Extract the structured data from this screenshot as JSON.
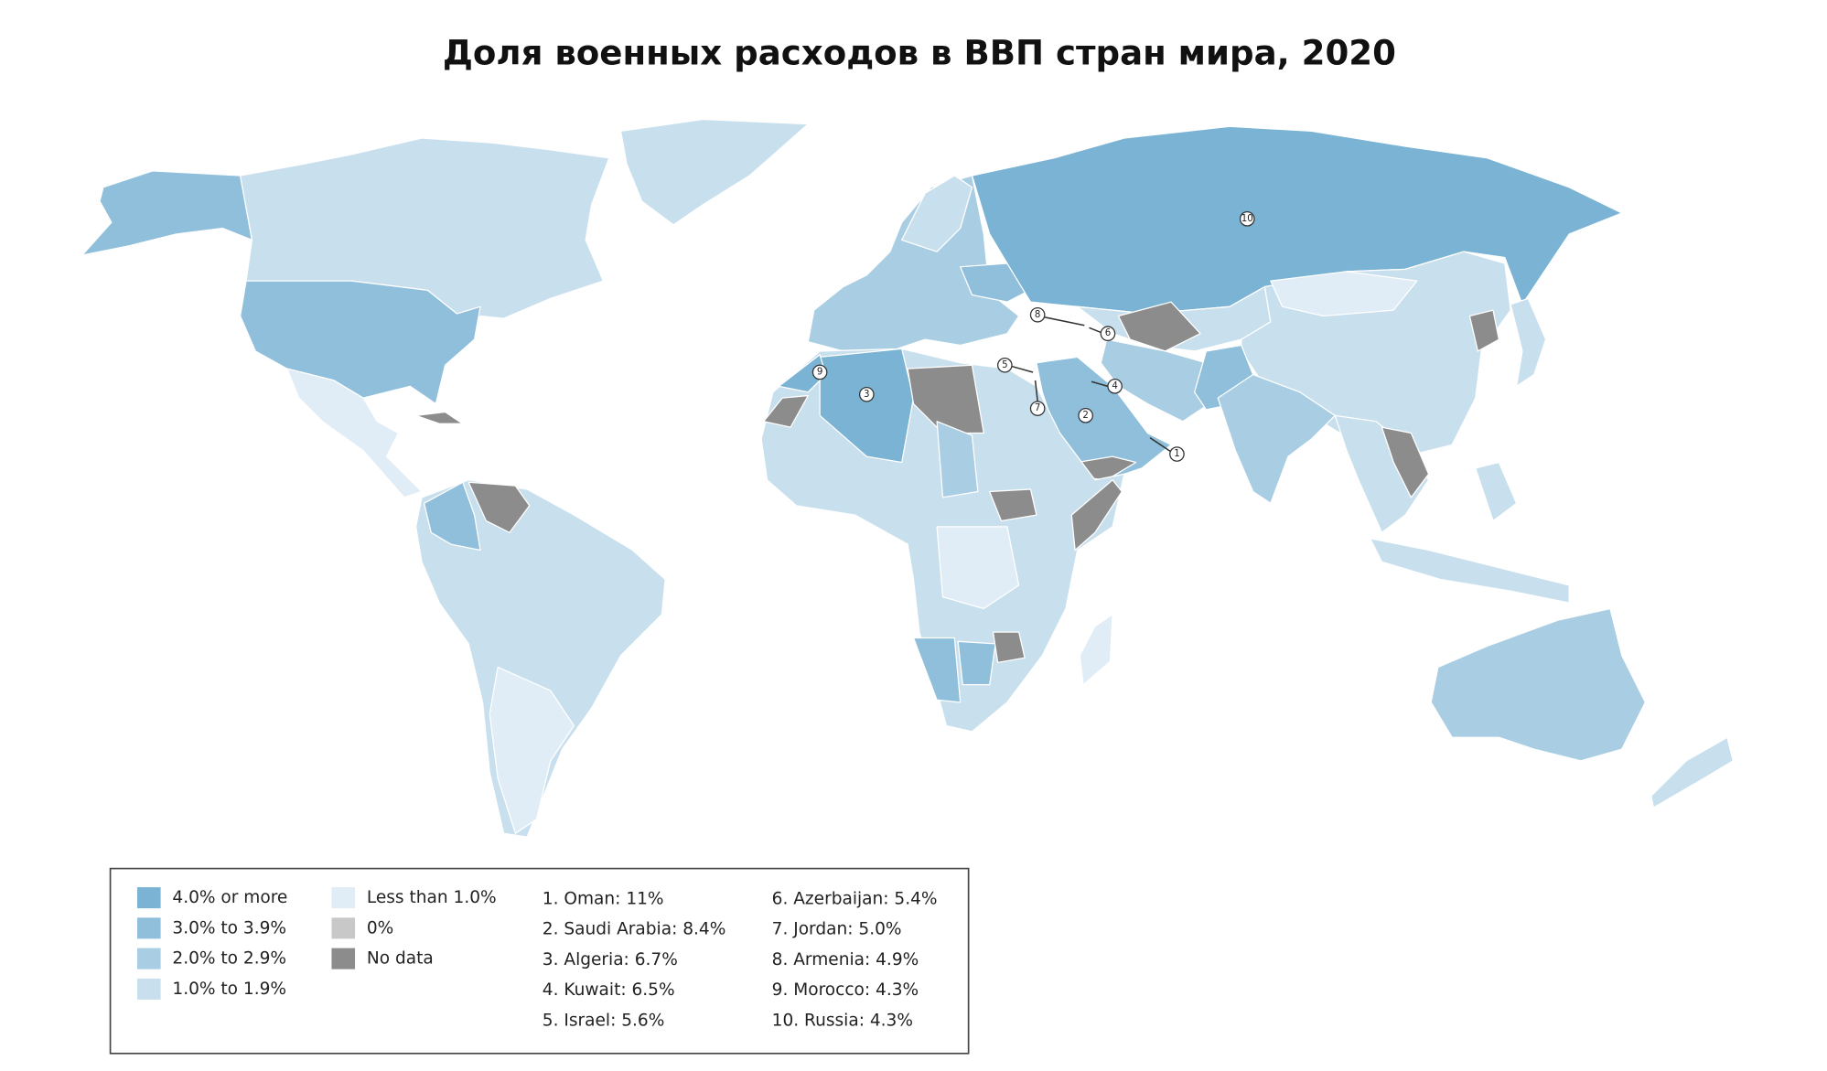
{
  "title": "Доля военных расходов в ВВП стран мира, 2020",
  "legend": {
    "categories": [
      {
        "label": "4.0% or more",
        "color": "#7ab3d3"
      },
      {
        "label": "3.0% to 3.9%",
        "color": "#8fbfdb"
      },
      {
        "label": "2.0% to 2.9%",
        "color": "#a9cde3"
      },
      {
        "label": "1.0% to 1.9%",
        "color": "#c8dfed"
      },
      {
        "label": "Less than 1.0%",
        "color": "#e1edf6"
      },
      {
        "label": "0%",
        "color": "#c8c8c8"
      },
      {
        "label": "No data",
        "color": "#8c8c8c"
      }
    ]
  },
  "top_countries": [
    "1. Oman: 11%",
    "2. Saudi Arabia: 8.4%",
    "3. Algeria: 6.7%",
    "4. Kuwait: 6.5%",
    "5. Israel: 5.6%",
    "6. Azerbaijan: 5.4%",
    "7. Jordan: 5.0%",
    "8. Armenia: 4.9%",
    "9. Morocco: 4.3%",
    "10. Russia: 4.3%"
  ],
  "markers": [
    "1",
    "2",
    "3",
    "4",
    "5",
    "6",
    "7",
    "8",
    "9",
    "10"
  ]
}
